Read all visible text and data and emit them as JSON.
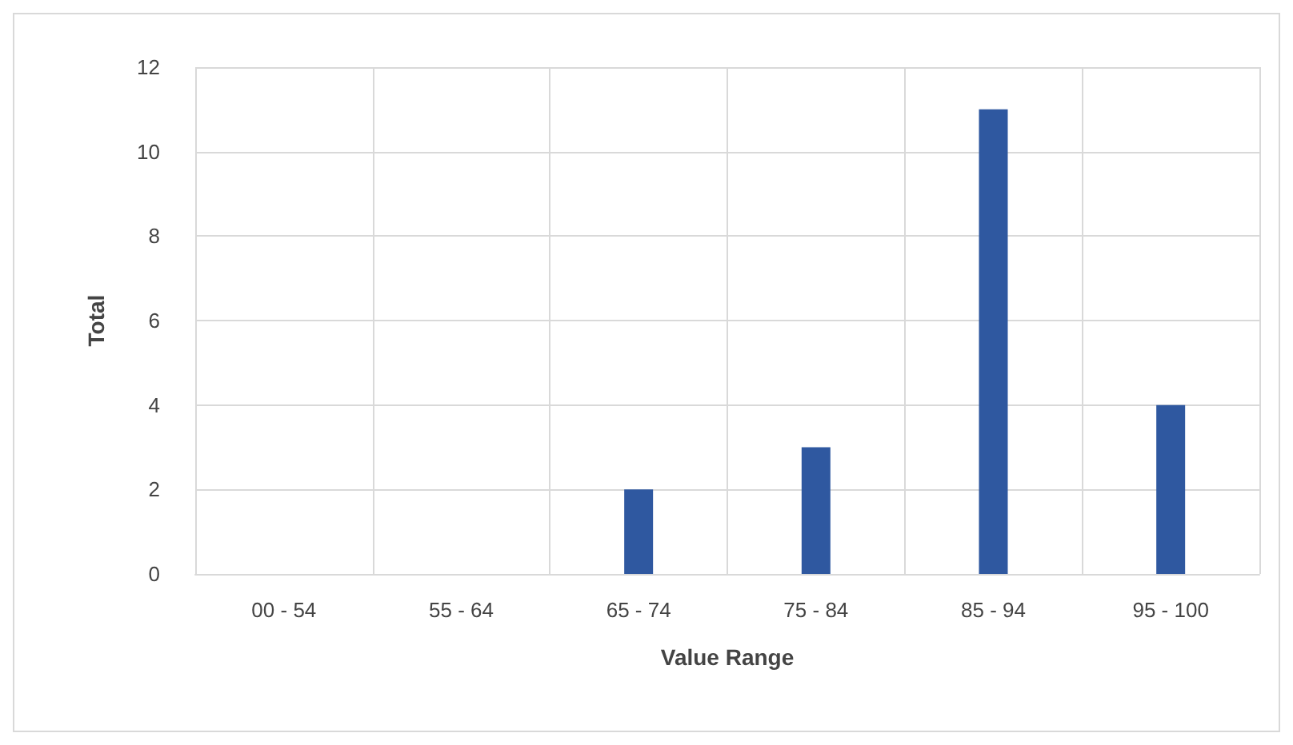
{
  "chart_data": {
    "type": "bar",
    "xlabel": "Value Range",
    "ylabel": "Total",
    "categories": [
      "00 - 54",
      "55 - 64",
      "65 - 74",
      "75 - 84",
      "85 - 94",
      "95 - 100"
    ],
    "values": [
      0,
      0,
      2,
      3,
      11,
      4
    ],
    "color": "#2f58a0",
    "ylim": [
      0,
      12
    ],
    "yticks": [
      0,
      2,
      4,
      6,
      8,
      10,
      12
    ],
    "grid": true
  }
}
